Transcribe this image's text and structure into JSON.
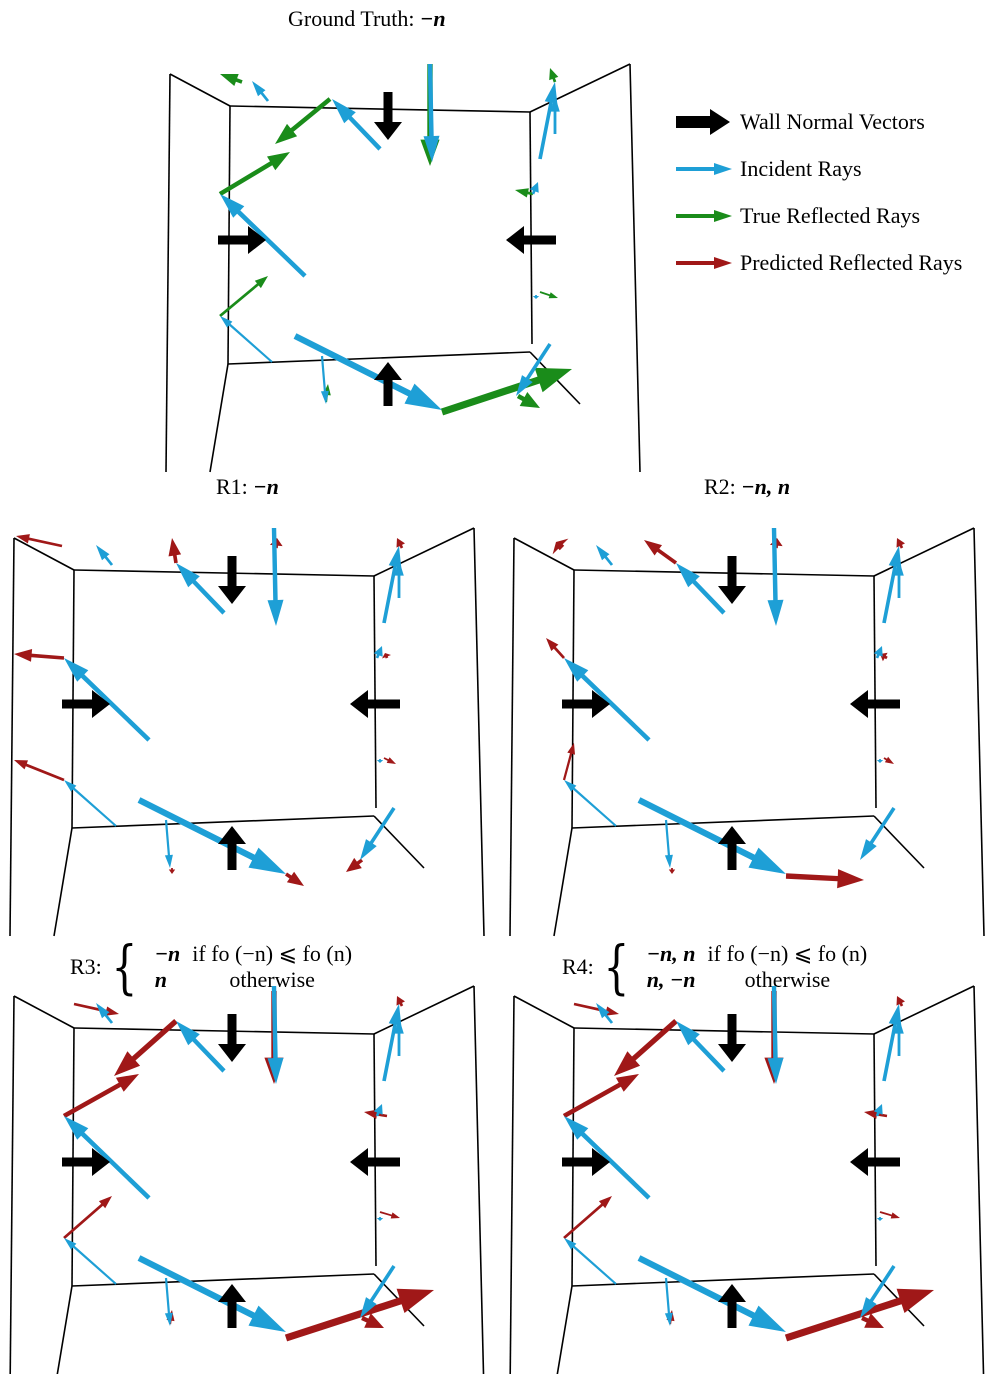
{
  "colors": {
    "wall_normal": "#000000",
    "incident": "#1e9fd6",
    "true_reflected": "#1a8c1a",
    "predicted_reflected": "#a01818",
    "room_edge": "#000000"
  },
  "legend": {
    "wall_normal": "Wall Normal Vectors",
    "incident": "Incident Rays",
    "true_reflected": "True Reflected Rays",
    "predicted_reflected": "Predicted Reflected Rays"
  },
  "panels": {
    "ground_truth": {
      "prefix": "Ground Truth:",
      "formula": "−n",
      "reflected_color": "true_reflected"
    },
    "r1": {
      "prefix": "R1:",
      "formula": "−n",
      "reflected_color": "predicted_reflected"
    },
    "r2": {
      "prefix": "R2:",
      "formula": "−n, n",
      "reflected_color": "predicted_reflected"
    },
    "r3": {
      "prefix": "R3:",
      "row1_value": "−n",
      "row1_cond": "if  fo (−n) ⩽ fo (n)",
      "row2_value": "n",
      "row2_cond": "otherwise",
      "reflected_color": "predicted_reflected"
    },
    "r4": {
      "prefix": "R4:",
      "row1_value": "−n, n",
      "row1_cond": "if  fo (−n) ⩽ fo (n)",
      "row2_value": "n, −n",
      "row2_cond": "otherwise",
      "reflected_color": "predicted_reflected"
    }
  }
}
